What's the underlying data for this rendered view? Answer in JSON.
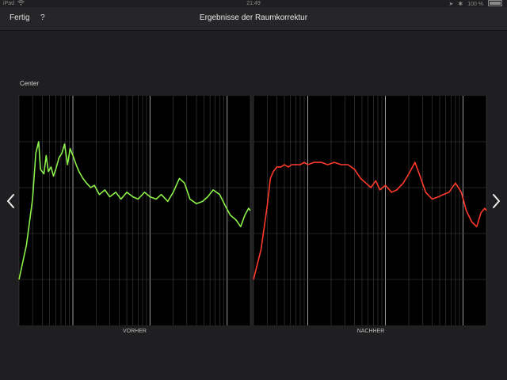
{
  "status_bar": {
    "carrier": "iPad",
    "time": "21:49",
    "battery": "100 %",
    "wifi_icon": "wifi-icon",
    "bluetooth_icon": "bluetooth-icon",
    "location_icon": "location-icon"
  },
  "nav": {
    "done_label": "Fertig",
    "help_label": "?",
    "title": "Ergebnisse der Raumkorrektur"
  },
  "channel": "Center",
  "colors": {
    "before_curve": "#8cf24a",
    "after_curve": "#ff3a2a",
    "plot_bg": "#000000",
    "grid": "#444444"
  },
  "panels": {
    "before_caption": "VORHER",
    "after_caption": "NACHHER"
  },
  "chart_data": {
    "type": "line",
    "x_scale": "log",
    "y_scale": "linear",
    "grid": true,
    "series": [
      {
        "name": "VORHER",
        "x": [
          20,
          25,
          30,
          33,
          36,
          38,
          42,
          45,
          48,
          52,
          56,
          60,
          66,
          72,
          78,
          85,
          92,
          100,
          110,
          120,
          135,
          150,
          170,
          190,
          220,
          260,
          300,
          360,
          420,
          500,
          600,
          700,
          850,
          1000,
          1200,
          1400,
          1700,
          2000,
          2400,
          2800,
          3300,
          4000,
          4800,
          5600,
          6600,
          8000,
          9500,
          11000,
          13000,
          15000,
          17000,
          19000,
          20000
        ],
        "y": [
          2,
          3.5,
          5.5,
          7.5,
          8,
          6.8,
          6.6,
          7.4,
          6.7,
          6.9,
          6.5,
          6.8,
          7.3,
          7.5,
          7.9,
          7.0,
          7.7,
          7.4,
          7.0,
          6.7,
          6.4,
          6.2,
          6.0,
          6.1,
          5.7,
          5.9,
          5.6,
          5.8,
          5.5,
          5.8,
          5.6,
          5.5,
          5.8,
          5.6,
          5.5,
          5.7,
          5.4,
          5.8,
          6.4,
          6.2,
          5.5,
          5.3,
          5.4,
          5.6,
          5.9,
          5.7,
          5.2,
          4.8,
          4.6,
          4.3,
          4.8,
          5.1,
          5.0
        ]
      },
      {
        "name": "NACHHER",
        "x": [
          20,
          25,
          30,
          33,
          36,
          40,
          45,
          50,
          56,
          62,
          70,
          80,
          90,
          100,
          120,
          150,
          180,
          220,
          270,
          330,
          400,
          480,
          560,
          650,
          750,
          850,
          1000,
          1200,
          1400,
          1700,
          2000,
          2400,
          2800,
          3300,
          4000,
          4800,
          5600,
          6600,
          8000,
          9500,
          11000,
          13000,
          15000,
          17000,
          19000,
          20000
        ],
        "y": [
          2,
          3.3,
          5.2,
          6.4,
          6.7,
          6.9,
          6.9,
          7.0,
          6.9,
          7.0,
          7.0,
          7.0,
          7.1,
          7.0,
          7.1,
          7.1,
          7.0,
          7.1,
          7.0,
          7.0,
          6.8,
          6.4,
          6.2,
          6.0,
          6.3,
          5.9,
          6.1,
          5.8,
          5.9,
          6.2,
          6.6,
          7.1,
          6.5,
          5.8,
          5.5,
          5.6,
          5.7,
          5.8,
          6.2,
          5.8,
          5.0,
          4.5,
          4.3,
          4.9,
          5.1,
          5.0
        ]
      }
    ],
    "xlim": [
      20,
      20000
    ],
    "ylim": [
      0,
      10
    ]
  }
}
